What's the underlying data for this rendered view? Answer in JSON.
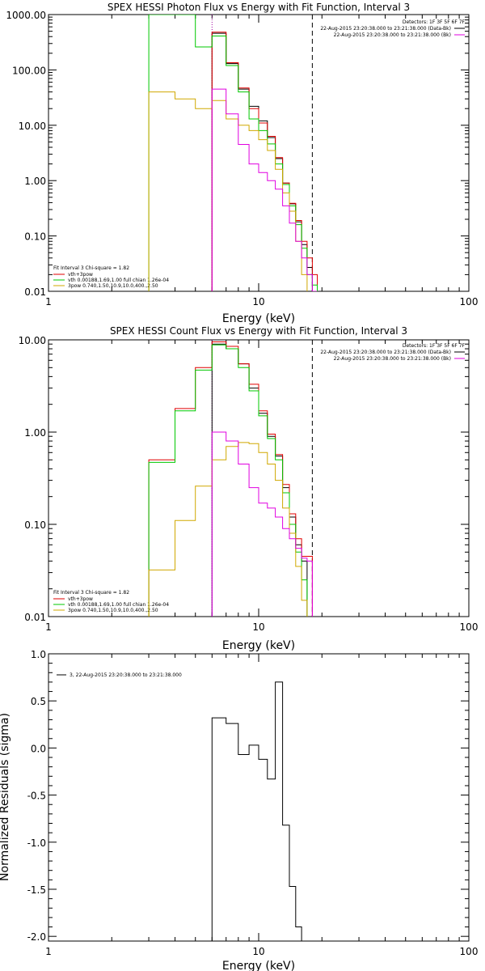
{
  "chart_data": [
    {
      "type": "line",
      "title": "SPEX HESSI Photon Flux vs Energy with Fit Function, Interval 3",
      "xlabel": "Energy (keV)",
      "ylabel": "",
      "xscale": "log",
      "yscale": "log",
      "xlim": [
        1,
        100
      ],
      "ylim": [
        0.01,
        1000
      ],
      "xtick_labels": [
        "1",
        "10",
        "100"
      ],
      "ytick_labels": [
        "0.01",
        "0.10",
        "1.00",
        "10.00",
        "100.00",
        "1000.00"
      ],
      "header_text": [
        "Detectors: 1F 3F 5F 6F 7F",
        "22-Aug-2015 23:20:38.000 to 23:21:38.000 (Data-Bk)",
        "22-Aug-2015 23:20:38.000 to 23:21:38.000 (Bk)"
      ],
      "legend": [
        "Fit Interval 3   Chi-square = 1.82",
        "vth+3pow",
        "vth 0.00188,1.69,1.00  full chian 1.26e-04",
        "3pow 0.740,1.50,10.9,10.0,400.,2.50"
      ],
      "vlines": [
        {
          "x": 6.0,
          "style": "dotted"
        },
        {
          "x": 18.0,
          "style": "dashed"
        }
      ],
      "edges": [
        3,
        4,
        5,
        6,
        7,
        8,
        9,
        10,
        11,
        12,
        13,
        14,
        15,
        16,
        17,
        18,
        19,
        20,
        21
      ],
      "series": [
        {
          "color": "#000000",
          "values": [
            null,
            null,
            null,
            460,
            130,
            45,
            22,
            12,
            6,
            2.5,
            0.9,
            0.38,
            0.18,
            0.07,
            0.027,
            null,
            null,
            null
          ]
        },
        {
          "color": "#e00000",
          "values": [
            null,
            null,
            null,
            480,
            135,
            47,
            20,
            11,
            6.3,
            2.6,
            0.9,
            0.39,
            0.19,
            0.08,
            0.04,
            0.02,
            null,
            null
          ]
        },
        {
          "color": "#00c800",
          "values": [
            1500,
            1000,
            260,
            410,
            120,
            40,
            13,
            8.0,
            4.6,
            2.0,
            0.85,
            0.35,
            0.16,
            0.06,
            0.02,
            0.013,
            null,
            null
          ]
        },
        {
          "color": "#d0a800",
          "values": [
            40,
            30,
            20,
            28,
            13,
            10,
            8,
            5.5,
            3.5,
            1.6,
            0.6,
            0.28,
            0.08,
            0.02,
            null,
            null,
            null,
            null
          ]
        },
        {
          "color": "#e000e0",
          "values": [
            null,
            null,
            null,
            45,
            16,
            4.5,
            2.0,
            1.4,
            1.0,
            0.7,
            0.35,
            0.17,
            0.08,
            0.04,
            0.02,
            0.01,
            null,
            null
          ]
        }
      ]
    },
    {
      "type": "line",
      "title": "SPEX HESSI Count Flux vs Energy with Fit Function, Interval 3",
      "xlabel": "Energy (keV)",
      "ylabel": "",
      "xscale": "log",
      "yscale": "log",
      "xlim": [
        1,
        100
      ],
      "ylim": [
        0.01,
        10
      ],
      "xtick_labels": [
        "1",
        "10",
        "100"
      ],
      "ytick_labels": [
        "0.01",
        "0.10",
        "1.00",
        "10.00"
      ],
      "header_text": [
        "Detectors: 1F 3F 5F 6F 7F",
        "22-Aug-2015 23:20:38.000 to 23:21:38.000 (Data-Bk)",
        "22-Aug-2015 23:20:38.000 to 23:21:38.000 (Bk)"
      ],
      "legend": [
        "Fit Interval 3   Chi-square = 1.82",
        "vth+3pow",
        "vth 0.00188,1.69,1.00  full chian 1.26e-04",
        "3pow 0.740,1.50,10.9,10.0,400.,2.50"
      ],
      "vlines": [
        {
          "x": 6.0,
          "style": "dotted"
        },
        {
          "x": 18.0,
          "style": "dashed"
        }
      ],
      "edges": [
        3,
        4,
        5,
        6,
        7,
        8,
        9,
        10,
        11,
        12,
        13,
        14,
        15,
        16,
        17,
        18,
        19
      ],
      "series": [
        {
          "color": "#000000",
          "values": [
            null,
            null,
            null,
            9.0,
            8.0,
            5.5,
            3.0,
            1.6,
            0.9,
            0.55,
            0.25,
            0.12,
            0.06,
            0.04,
            null,
            null
          ]
        },
        {
          "color": "#e00000",
          "values": [
            0.5,
            1.8,
            5.0,
            9.5,
            8.5,
            5.5,
            3.3,
            1.7,
            0.95,
            0.57,
            0.27,
            0.13,
            0.07,
            0.045,
            0.045,
            null
          ]
        },
        {
          "color": "#00c800",
          "values": [
            0.47,
            1.7,
            4.7,
            8.8,
            8.0,
            5.0,
            2.8,
            1.5,
            0.85,
            0.5,
            0.22,
            0.1,
            0.05,
            0.025,
            null,
            null
          ]
        },
        {
          "color": "#d0a800",
          "values": [
            0.032,
            0.11,
            0.26,
            0.5,
            0.7,
            0.77,
            0.75,
            0.6,
            0.45,
            0.3,
            0.15,
            0.08,
            0.035,
            0.015,
            null,
            null
          ]
        },
        {
          "color": "#e000e0",
          "values": [
            null,
            null,
            null,
            1.0,
            0.8,
            0.45,
            0.25,
            0.17,
            0.15,
            0.12,
            0.09,
            0.07,
            0.055,
            0.043,
            0.04,
            null
          ]
        }
      ]
    },
    {
      "type": "line",
      "title": "",
      "xlabel": "Energy (keV)",
      "ylabel": "Normalized Residuals (sigma)",
      "xscale": "log",
      "yscale": "linear",
      "xlim": [
        1,
        100
      ],
      "ylim": [
        -2.05,
        1.0
      ],
      "xtick_labels": [
        "1",
        "10",
        "100"
      ],
      "ytick_labels": [
        "1.0",
        "0.5",
        "0.0",
        "-0.5",
        "-1.0",
        "-1.5",
        "-2.0"
      ],
      "ytick_values": [
        1.0,
        0.5,
        0.0,
        -0.5,
        -1.0,
        -1.5,
        -2.0
      ],
      "legend": [
        "3, 22-Aug-2015 23:20:38.000 to 23:21:38.000"
      ],
      "edges": [
        6,
        7,
        8,
        9,
        10,
        11,
        12,
        13,
        14,
        15,
        16,
        17,
        18,
        19
      ],
      "series": [
        {
          "color": "#000000",
          "values": [
            0.32,
            0.26,
            -0.07,
            0.03,
            -0.12,
            -0.33,
            0.7,
            -0.82,
            -1.47,
            -1.9,
            -2.05,
            -2.05,
            -2.05
          ]
        }
      ]
    }
  ]
}
